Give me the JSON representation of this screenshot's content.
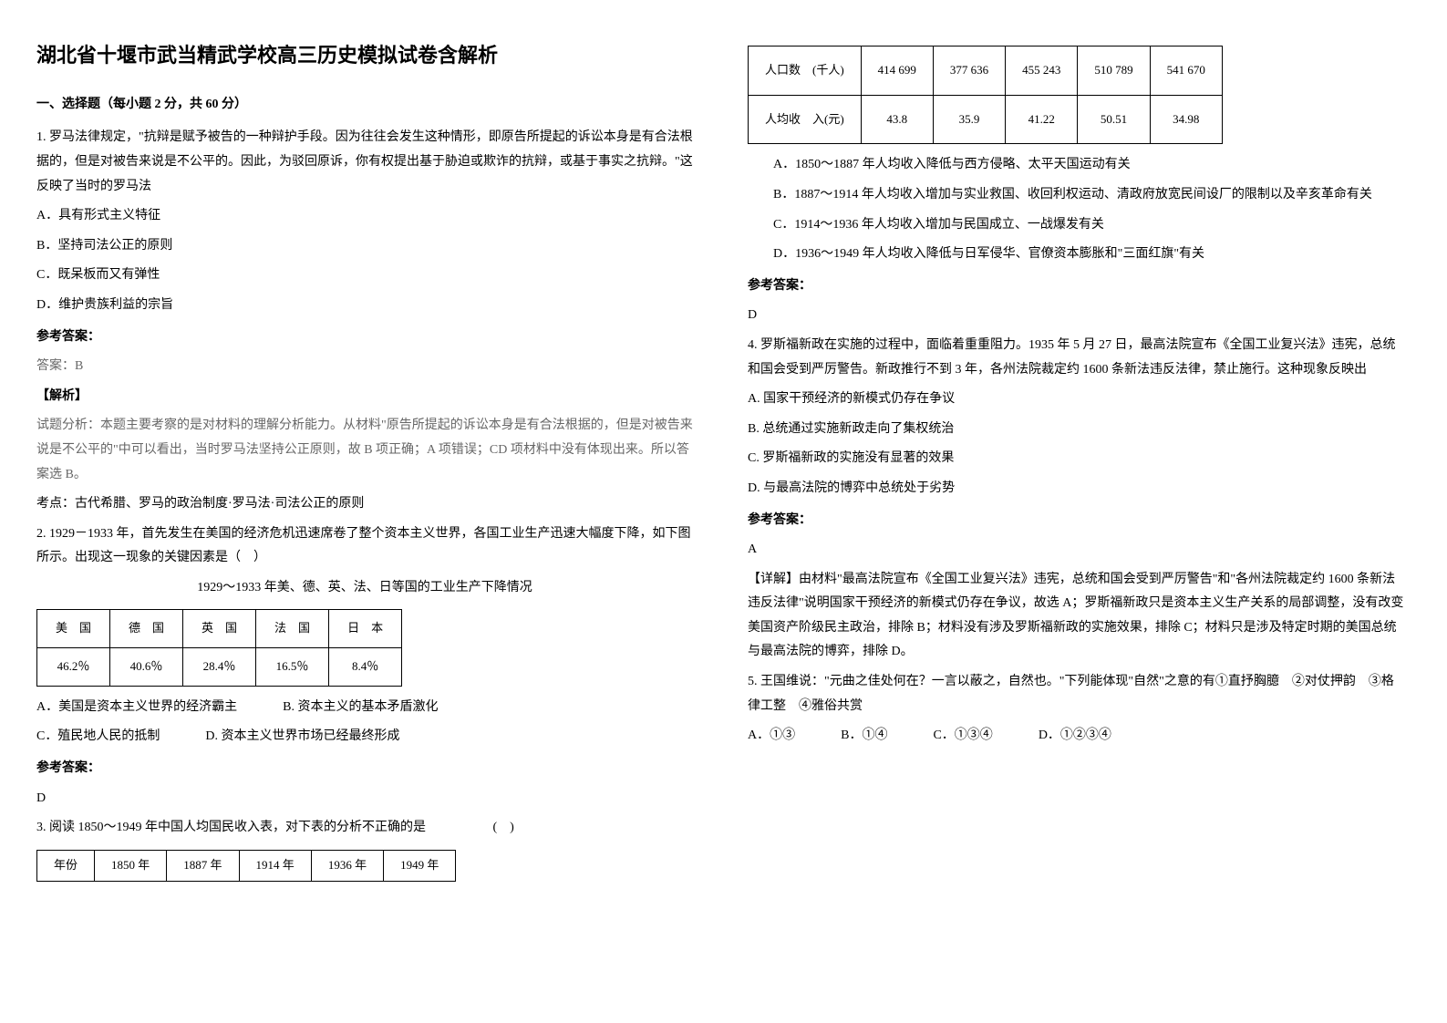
{
  "title": "湖北省十堰市武当精武学校高三历史模拟试卷含解析",
  "section1_title": "一、选择题（每小题 2 分，共 60 分）",
  "q1": {
    "stem": "1. 罗马法律规定，\"抗辩是赋予被告的一种辩护手段。因为往往会发生这种情形，即原告所提起的诉讼本身是有合法根据的，但是对被告来说是不公平的。因此，为驳回原诉，你有权提出基于胁迫或欺诈的抗辩，或基于事实之抗辩。\"这反映了当时的罗马法",
    "A": "A．具有形式主义特征",
    "B": "B．坚持司法公正的原则",
    "C": "C．既呆板而又有弹性",
    "D": "D．维护贵族利益的宗旨",
    "ans_label": "参考答案：",
    "ans": "答案：B",
    "parse_label": "【解析】",
    "parse": "试题分析：本题主要考察的是对材料的理解分析能力。从材料\"原告所提起的诉讼本身是有合法根据的，但是对被告来说是不公平的\"中可以看出，当时罗马法坚持公正原则，故 B 项正确；A 项错误；CD 项材料中没有体现出来。所以答案选 B。",
    "point": "考点：古代希腊、罗马的政治制度·罗马法·司法公正的原则"
  },
  "q2": {
    "stem": "2. 1929－1933 年，首先发生在美国的经济危机迅速席卷了整个资本主义世界，各国工业生产迅速大幅度下降，如下图所示。出现这一现象的关键因素是（　）",
    "table_title": "1929～1933 年美、德、英、法、日等国的工业生产下降情况",
    "headers": [
      "美　国",
      "德　国",
      "英　国",
      "法　国",
      "日　本"
    ],
    "row": [
      "46.2％",
      "40.6％",
      "28.4％",
      "16.5％",
      "8.4％"
    ],
    "A": "A．美国是资本主义世界的经济霸主",
    "B": "B. 资本主义的基本矛盾激化",
    "C": "C．殖民地人民的抵制",
    "D": "D. 资本主义世界市场已经最终形成",
    "ans_label": "参考答案：",
    "ans": "D"
  },
  "q3": {
    "stem": "3. 阅读 1850～1949 年中国人均国民收入表，对下表的分析不正确的是　　　　　 (　)",
    "row1_head": "年份",
    "row1": [
      "1850 年",
      "1887 年",
      "1914 年",
      "1936 年",
      "1949 年"
    ],
    "row2_head": "人口数　(千人)",
    "row2": [
      "414 699",
      "377 636",
      "455 243",
      "510 789",
      "541 670"
    ],
    "row3_head": "人均收　入(元)",
    "row3": [
      "43.8",
      "35.9",
      "41.22",
      "50.51",
      "34.98"
    ],
    "A": "A．1850～1887 年人均收入降低与西方侵略、太平天国运动有关",
    "B": "B．1887～1914 年人均收入增加与实业救国、收回利权运动、清政府放宽民间设厂的限制以及辛亥革命有关",
    "C": "C．1914～1936 年人均收入增加与民国成立、一战爆发有关",
    "D": "D．1936～1949 年人均收入降低与日军侵华、官僚资本膨胀和\"三面红旗\"有关",
    "ans_label": "参考答案：",
    "ans": "D"
  },
  "q4": {
    "stem": "4. 罗斯福新政在实施的过程中，面临着重重阻力。1935 年 5 月 27 日，最高法院宣布《全国工业复兴法》违宪，总统和国会受到严厉警告。新政推行不到 3 年，各州法院裁定约 1600 条新法违反法律，禁止施行。这种现象反映出",
    "A": "A. 国家干预经济的新模式仍存在争议",
    "B": "B. 总统通过实施新政走向了集权统治",
    "C": "C. 罗斯福新政的实施没有显著的效果",
    "D": "D. 与最高法院的博弈中总统处于劣势",
    "ans_label": "参考答案：",
    "ans": "A",
    "parse": "【详解】由材料\"最高法院宣布《全国工业复兴法》违宪，总统和国会受到严厉警告\"和\"各州法院裁定约 1600 条新法违反法律\"说明国家干预经济的新模式仍存在争议，故选 A；罗斯福新政只是资本主义生产关系的局部调整，没有改变美国资产阶级民主政治，排除 B；材料没有涉及罗斯福新政的实施效果，排除 C；材料只是涉及特定时期的美国总统与最高法院的博弈，排除 D。"
  },
  "q5": {
    "stem": "5. 王国维说：\"元曲之佳处何在？一言以蔽之，自然也。\"下列能体现\"自然\"之意的有①直抒胸臆　②对仗押韵　③格律工整　④雅俗共赏",
    "A": "A．①③",
    "B": "B．①④",
    "C": "C．①③④",
    "D": "D．①②③④"
  }
}
